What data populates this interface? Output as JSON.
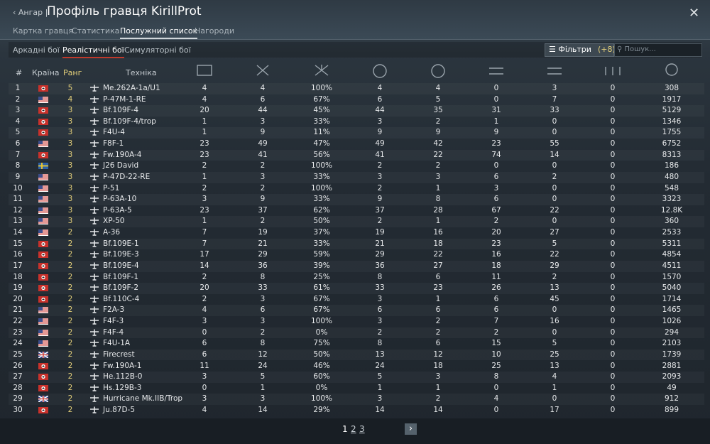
{
  "header": {
    "back": "Ангар",
    "title": "Профіль гравця KirillProt",
    "tabs": [
      "Картка гравця",
      "Статистика",
      "Послужний список",
      "Нагороди"
    ]
  },
  "mode_tabs": [
    "Аркадні бої",
    "Реалістичні бої",
    "Симуляторні бої"
  ],
  "filters": {
    "label": "Фільтри",
    "count": "(+8)",
    "search_placeholder": "Пошук..."
  },
  "table": {
    "columns": [
      "#",
      "Країна",
      "Ранг",
      "Техніка"
    ],
    "rows": [
      [
        1,
        5,
        "Me.262A-1a/U1",
        4,
        4,
        "100%",
        4,
        4,
        0,
        3,
        0,
        308
      ],
      [
        2,
        4,
        "P-47M-1-RE",
        4,
        6,
        "67%",
        6,
        5,
        0,
        7,
        0,
        1917
      ],
      [
        3,
        3,
        "Bf.109F-4",
        20,
        44,
        "45%",
        44,
        35,
        31,
        33,
        0,
        5129
      ],
      [
        4,
        3,
        "Bf.109F-4/trop",
        1,
        3,
        "33%",
        3,
        2,
        1,
        0,
        0,
        1346
      ],
      [
        5,
        3,
        "F4U-4",
        1,
        9,
        "11%",
        9,
        9,
        9,
        0,
        0,
        1755
      ],
      [
        6,
        3,
        "F8F-1",
        23,
        49,
        "47%",
        49,
        42,
        23,
        55,
        0,
        6752
      ],
      [
        7,
        3,
        "Fw.190A-4",
        23,
        41,
        "56%",
        41,
        22,
        74,
        14,
        0,
        8313
      ],
      [
        8,
        3,
        "J26 David",
        2,
        2,
        "100%",
        2,
        2,
        0,
        0,
        0,
        186
      ],
      [
        9,
        3,
        "P-47D-22-RE",
        1,
        3,
        "33%",
        3,
        3,
        6,
        2,
        0,
        480
      ],
      [
        10,
        3,
        "P-51",
        2,
        2,
        "100%",
        2,
        1,
        3,
        0,
        0,
        548
      ],
      [
        11,
        3,
        "P-63A-10",
        3,
        9,
        "33%",
        9,
        8,
        6,
        0,
        0,
        3323
      ],
      [
        12,
        3,
        "P-63A-5",
        23,
        37,
        "62%",
        37,
        28,
        67,
        22,
        0,
        "12.8K"
      ],
      [
        13,
        3,
        "XP-50",
        1,
        2,
        "50%",
        2,
        1,
        2,
        0,
        0,
        360
      ],
      [
        14,
        2,
        "A-36",
        7,
        19,
        "37%",
        19,
        16,
        20,
        27,
        0,
        2533
      ],
      [
        15,
        2,
        "Bf.109E-1",
        7,
        21,
        "33%",
        21,
        18,
        23,
        5,
        0,
        5311
      ],
      [
        16,
        2,
        "Bf.109E-3",
        17,
        29,
        "59%",
        29,
        22,
        16,
        22,
        0,
        4854
      ],
      [
        17,
        2,
        "Bf.109E-4",
        14,
        36,
        "39%",
        36,
        27,
        18,
        29,
        0,
        4511
      ],
      [
        18,
        2,
        "Bf.109F-1",
        2,
        8,
        "25%",
        8,
        6,
        11,
        2,
        0,
        1570
      ],
      [
        19,
        2,
        "Bf.109F-2",
        20,
        33,
        "61%",
        33,
        23,
        26,
        13,
        0,
        5040
      ],
      [
        20,
        2,
        "Bf.110C-4",
        2,
        3,
        "67%",
        3,
        1,
        6,
        45,
        0,
        1714
      ],
      [
        21,
        2,
        "F2A-3",
        4,
        6,
        "67%",
        6,
        6,
        6,
        0,
        0,
        1465
      ],
      [
        22,
        2,
        "F4F-3",
        3,
        3,
        "100%",
        3,
        2,
        7,
        16,
        0,
        1026
      ],
      [
        23,
        2,
        "F4F-4",
        0,
        2,
        "0%",
        2,
        2,
        2,
        0,
        0,
        294
      ],
      [
        24,
        2,
        "F4U-1A",
        6,
        8,
        "75%",
        8,
        6,
        15,
        5,
        0,
        2103
      ],
      [
        25,
        2,
        "Firecrest",
        6,
        12,
        "50%",
        13,
        12,
        10,
        25,
        0,
        1739
      ],
      [
        26,
        2,
        "Fw.190A-1",
        11,
        24,
        "46%",
        24,
        18,
        25,
        13,
        0,
        2881
      ],
      [
        27,
        2,
        "He.112B-0",
        3,
        5,
        "60%",
        5,
        3,
        8,
        4,
        0,
        2093
      ],
      [
        28,
        2,
        "Hs.129B-3",
        0,
        1,
        "0%",
        1,
        1,
        0,
        1,
        0,
        49
      ],
      [
        29,
        2,
        "Hurricane Mk.IIB/Trop",
        3,
        3,
        "100%",
        3,
        2,
        4,
        0,
        0,
        912
      ],
      [
        30,
        2,
        "Ju.87D-5",
        4,
        14,
        "29%",
        14,
        14,
        0,
        17,
        0,
        899
      ]
    ]
  },
  "pagination": [
    "1",
    "2",
    "3"
  ]
}
